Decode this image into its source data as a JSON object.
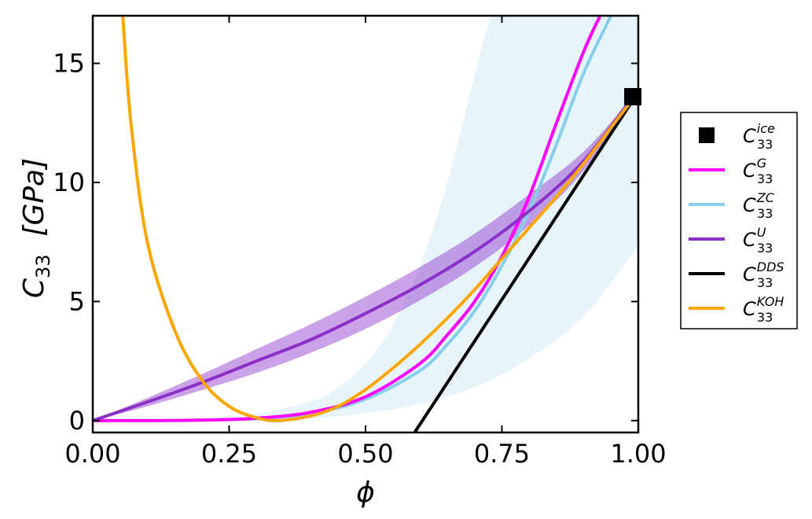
{
  "chart_data": {
    "type": "line",
    "xlabel": "ϕ",
    "ylabel": {
      "base": "C",
      "sub": "33",
      "unit": "[GPa]"
    },
    "xlim": [
      0.0,
      1.0
    ],
    "ylim": [
      -0.5,
      17.0
    ],
    "xticks": [
      "0.00",
      "0.25",
      "0.50",
      "0.75",
      "1.00"
    ],
    "xtick_values": [
      0.0,
      0.25,
      0.5,
      0.75,
      1.0
    ],
    "yticks": [
      "0",
      "5",
      "10",
      "15"
    ],
    "ytick_values": [
      0,
      5,
      10,
      15
    ],
    "grid": false,
    "legend_position": "right, outside",
    "series": [
      {
        "name": "C33 ice",
        "base": "C",
        "sub": "33",
        "sup": "ice",
        "kind": "marker",
        "color": "#000000",
        "points": [
          [
            0.99,
            13.6
          ]
        ]
      },
      {
        "name": "C33 G",
        "base": "C",
        "sub": "33",
        "sup": "G",
        "kind": "line",
        "color": "#ff00ff",
        "x": [
          0.0,
          0.1,
          0.2,
          0.3,
          0.4,
          0.5,
          0.6,
          0.65,
          0.7,
          0.75,
          0.8,
          0.85,
          0.9,
          0.93
        ],
        "y": [
          0.0,
          0.0,
          0.02,
          0.1,
          0.35,
          1.0,
          2.4,
          3.6,
          5.0,
          6.9,
          9.4,
          12.5,
          15.5,
          17.0
        ]
      },
      {
        "name": "C33 ZC",
        "base": "C",
        "sub": "33",
        "sup": "ZC",
        "kind": "line",
        "color": "#87ceeb",
        "x": [
          0.0,
          0.1,
          0.2,
          0.3,
          0.4,
          0.5,
          0.6,
          0.65,
          0.7,
          0.75,
          0.8,
          0.85,
          0.9,
          0.95
        ],
        "y": [
          0.0,
          0.0,
          0.02,
          0.08,
          0.3,
          0.9,
          2.1,
          3.2,
          4.6,
          6.5,
          8.8,
          11.6,
          14.6,
          17.0
        ],
        "band_lower_x": [
          0.0,
          0.1,
          0.2,
          0.3,
          0.4,
          0.5,
          0.6,
          0.7,
          0.8,
          0.9,
          1.0
        ],
        "band_lower_y": [
          0.0,
          0.0,
          0.0,
          0.02,
          0.1,
          0.3,
          0.7,
          1.4,
          2.6,
          4.4,
          7.3
        ],
        "band_upper_x": [
          0.0,
          0.1,
          0.2,
          0.3,
          0.4,
          0.45,
          0.5,
          0.55,
          0.6,
          0.65,
          0.7,
          0.73,
          0.75,
          1.0
        ],
        "band_upper_y": [
          0.0,
          0.01,
          0.1,
          0.3,
          0.8,
          1.4,
          2.4,
          4.0,
          6.5,
          10.0,
          14.5,
          17.0,
          17.0,
          17.0
        ]
      },
      {
        "name": "C33 U",
        "base": "C",
        "sub": "33",
        "sup": "U",
        "kind": "line",
        "color": "#8b2fc9",
        "x": [
          0.0,
          0.1,
          0.2,
          0.3,
          0.4,
          0.5,
          0.6,
          0.7,
          0.8,
          0.9,
          0.99
        ],
        "y": [
          0.0,
          0.78,
          1.6,
          2.5,
          3.4,
          4.5,
          5.7,
          7.1,
          8.8,
          10.9,
          13.6
        ],
        "band_lower": [
          0.0,
          0.6,
          1.28,
          2.0,
          2.85,
          3.85,
          5.05,
          6.45,
          8.2,
          10.5,
          13.6
        ],
        "band_upper": [
          0.0,
          0.95,
          1.95,
          3.0,
          4.05,
          5.2,
          6.45,
          7.85,
          9.5,
          11.3,
          13.6
        ]
      },
      {
        "name": "C33 DDS",
        "base": "C",
        "sub": "33",
        "sup": "DDS",
        "kind": "line",
        "color": "#000000",
        "x": [
          0.59,
          1.0
        ],
        "y": [
          -0.5,
          13.8
        ]
      },
      {
        "name": "C33 KOH",
        "base": "C",
        "sub": "33",
        "sup": "KOH",
        "kind": "line",
        "color": "#ffa500",
        "x": [
          0.055,
          0.07,
          0.1,
          0.15,
          0.2,
          0.25,
          0.3,
          0.34,
          0.4,
          0.45,
          0.5,
          0.55,
          0.6,
          0.65,
          0.7,
          0.75,
          0.8,
          0.85,
          0.9,
          0.95,
          1.0
        ],
        "y": [
          17.0,
          12.5,
          7.5,
          3.8,
          1.7,
          0.6,
          0.12,
          0.0,
          0.2,
          0.6,
          1.3,
          2.2,
          3.2,
          4.3,
          5.5,
          6.8,
          8.1,
          9.4,
          10.8,
          12.3,
          13.8
        ]
      }
    ]
  }
}
